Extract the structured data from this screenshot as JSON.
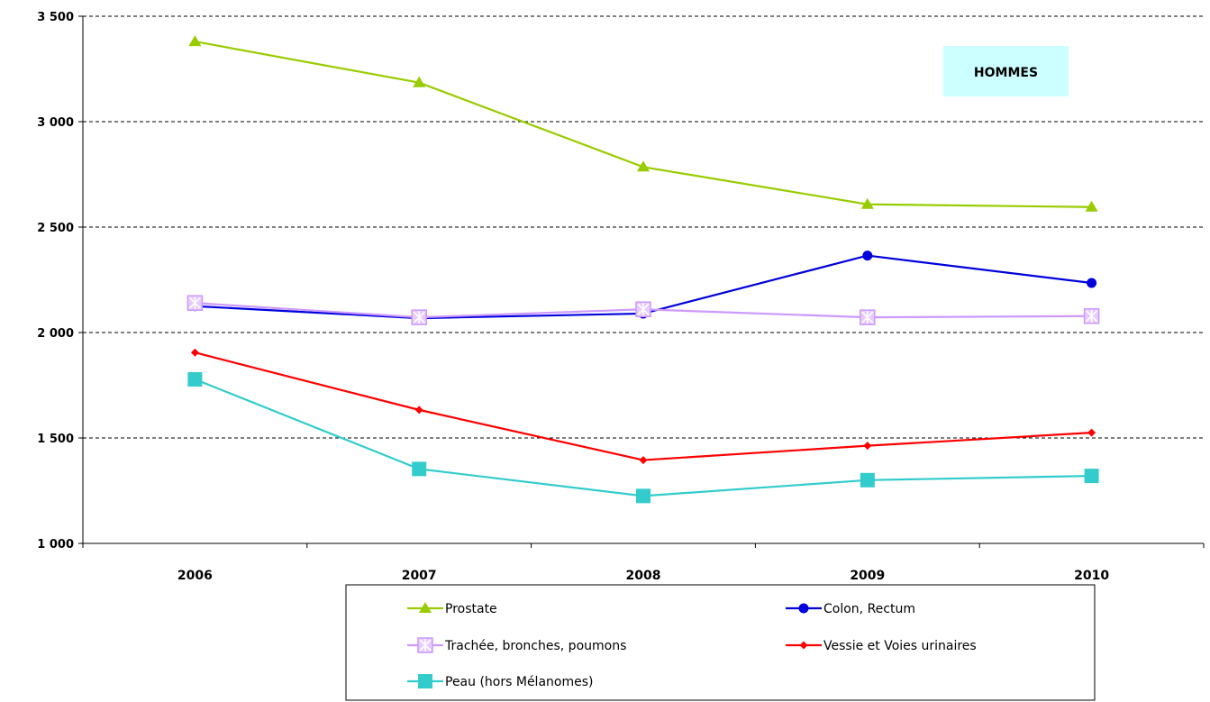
{
  "chart_data": {
    "type": "line",
    "title": "",
    "xlabel": "",
    "ylabel": "",
    "annotation": "HOMMES",
    "categories": [
      "2006",
      "2007",
      "2008",
      "2009",
      "2010"
    ],
    "ylim": [
      1000,
      3500
    ],
    "yticks": [
      1000,
      1500,
      2000,
      2500,
      3000,
      3500
    ],
    "ytick_labels": [
      "1 000",
      "1 500",
      "2 000",
      "2 500",
      "3 000",
      "3 500"
    ],
    "grid": true,
    "legend_position": "bottom",
    "series": [
      {
        "name": "Prostate",
        "values": [
          3380,
          3185,
          2785,
          2608,
          2595
        ],
        "color": "#99cc00",
        "marker": "triangle"
      },
      {
        "name": "Colon, Rectum",
        "values": [
          2125,
          2068,
          2090,
          2365,
          2235
        ],
        "color": "#0000dd",
        "marker": "circle"
      },
      {
        "name": "Trachée, bronches, poumons",
        "values": [
          2140,
          2072,
          2110,
          2072,
          2078
        ],
        "color": "#cc99ff",
        "marker": "asterisk-square"
      },
      {
        "name": "Vessie et Voies urinaires",
        "values": [
          1905,
          1633,
          1395,
          1463,
          1525
        ],
        "color": "#ff0000",
        "marker": "diamond"
      },
      {
        "name": "Peau (hors Mélanomes)",
        "values": [
          1778,
          1353,
          1225,
          1300,
          1320
        ],
        "color": "#33cccc",
        "marker": "square"
      }
    ]
  }
}
